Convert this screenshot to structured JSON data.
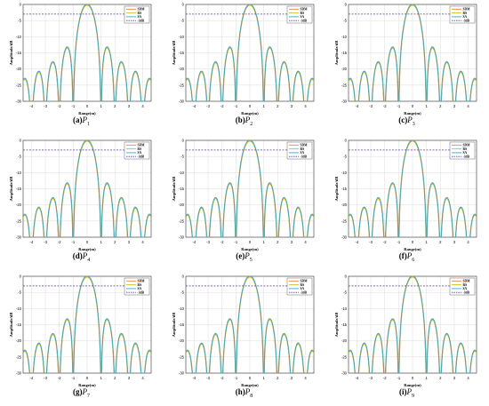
{
  "figure": {
    "panels": [
      {
        "label": "(a)",
        "var": "P",
        "sub": "1"
      },
      {
        "label": "(b)",
        "var": "P",
        "sub": "2"
      },
      {
        "label": "(c)",
        "var": "P",
        "sub": "3"
      },
      {
        "label": "(d)",
        "var": "P",
        "sub": "4"
      },
      {
        "label": "(e)",
        "var": "P",
        "sub": "5"
      },
      {
        "label": "(f)",
        "var": "P",
        "sub": "6"
      },
      {
        "label": "(g)",
        "var": "P",
        "sub": "7"
      },
      {
        "label": "(h)",
        "var": "P",
        "sub": "8"
      },
      {
        "label": "(i)",
        "var": "P",
        "sub": "9"
      }
    ]
  },
  "colors": {
    "SDM": "#e8823a",
    "RS": "#c8c020",
    "SA": "#30a8d8",
    "ref": "#5a3aa0",
    "grid": "#dcdcdc",
    "axis": "#333333"
  },
  "chart_data": {
    "type": "line",
    "count": 9,
    "title": "",
    "xlabel": "Range(m)",
    "ylabel": "Amplitude/dB",
    "xlim": [
      -4.6,
      4.6
    ],
    "ylim": [
      -30,
      0
    ],
    "xticks": [
      "-4",
      "-3",
      "-2",
      "-1",
      "0",
      "1",
      "2",
      "3",
      "4"
    ],
    "xtick_values": [
      -4,
      -3,
      -2,
      -1,
      0,
      1,
      2,
      3,
      4
    ],
    "yticks": [
      "-30",
      "-25",
      "-20",
      "-15",
      "-10",
      "-5",
      "0"
    ],
    "ytick_values": [
      -30,
      -25,
      -20,
      -15,
      -10,
      -5,
      0
    ],
    "grid": true,
    "legend_position": "top-right",
    "legend": [
      "SDM",
      "RS",
      "SA",
      "-3dB"
    ],
    "reference_line": {
      "name": "-3dB",
      "y": -3
    },
    "series_model": "sinc^2 pattern, mainlobe null at x=+/-1 m, sidelobe peaks approx -13.3, -17.9, -20.8, -23.0 dB; SDM, RS, SA curves overlap"
  }
}
